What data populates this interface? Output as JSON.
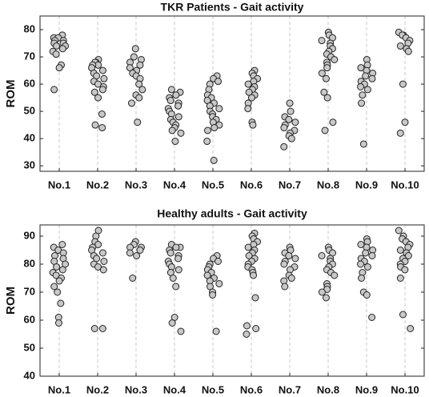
{
  "chart_data": [
    {
      "type": "strip",
      "title": "TKR Patients - Gait activity",
      "y_label": "ROM",
      "categories": [
        "No.1",
        "No.2",
        "No.3",
        "No.4",
        "No.5",
        "No.6",
        "No.7",
        "No.8",
        "No.9",
        "No.10"
      ],
      "values": [
        [
          78,
          77,
          77,
          76,
          76,
          75,
          75,
          74,
          74,
          73,
          72,
          71,
          67,
          66,
          58
        ],
        [
          69,
          68,
          68,
          67,
          67,
          66,
          65,
          64,
          63,
          62,
          61,
          60,
          59,
          58,
          57,
          55,
          49,
          45,
          44
        ],
        [
          73,
          70,
          69,
          68,
          67,
          66,
          65,
          64,
          63,
          62,
          60,
          58,
          56,
          55,
          53,
          46
        ],
        [
          58,
          57,
          56,
          55,
          54,
          53,
          52,
          51,
          50,
          49,
          48,
          47,
          46,
          45,
          44,
          43,
          42,
          39
        ],
        [
          63,
          62,
          61,
          60,
          58,
          56,
          55,
          54,
          53,
          52,
          51,
          50,
          49,
          48,
          47,
          46,
          45,
          44,
          43,
          39,
          32
        ],
        [
          65,
          64,
          63,
          62,
          61,
          60,
          59,
          58,
          57,
          56,
          55,
          53,
          51,
          46,
          45
        ],
        [
          53,
          50,
          48,
          47,
          46,
          45,
          44,
          43,
          42,
          41,
          40,
          37
        ],
        [
          79,
          78,
          77,
          76,
          75,
          74,
          73,
          72,
          71,
          70,
          69,
          68,
          67,
          66,
          64,
          62,
          57,
          55,
          46,
          43
        ],
        [
          69,
          67,
          66,
          65,
          64,
          63,
          62,
          61,
          60,
          59,
          58,
          56,
          53,
          38
        ],
        [
          79,
          78,
          78,
          77,
          76,
          75,
          74,
          73,
          72,
          60,
          46,
          42
        ]
      ],
      "color": "#c8c8c8",
      "ylim": [
        28,
        85
      ],
      "yticks": [
        30,
        40,
        50,
        60,
        70,
        80
      ],
      "grid": true
    },
    {
      "type": "strip",
      "title": "Healthy adults - Gait activity",
      "y_label": "ROM",
      "categories": [
        "No.1",
        "No.2",
        "No.3",
        "No.4",
        "No.5",
        "No.6",
        "No.7",
        "No.8",
        "No.9",
        "No.10"
      ],
      "values": [
        [
          87,
          86,
          85,
          84,
          83,
          82,
          81,
          80,
          79,
          78,
          77,
          76,
          75,
          74,
          72,
          70,
          66,
          61,
          59
        ],
        [
          92,
          90,
          88,
          87,
          86,
          85,
          84,
          83,
          82,
          81,
          80,
          79,
          78,
          57,
          57
        ],
        [
          88,
          87,
          86,
          86,
          85,
          84,
          83,
          75
        ],
        [
          87,
          86,
          86,
          85,
          84,
          83,
          82,
          81,
          80,
          79,
          78,
          77,
          75,
          72,
          61,
          59,
          56
        ],
        [
          83,
          82,
          81,
          80,
          79,
          78,
          77,
          76,
          75,
          74,
          73,
          72,
          70,
          69,
          56
        ],
        [
          91,
          90,
          89,
          88,
          87,
          86,
          85,
          84,
          83,
          82,
          81,
          80,
          79,
          78,
          77,
          76,
          68,
          58,
          57,
          55
        ],
        [
          86,
          85,
          84,
          83,
          82,
          81,
          80,
          79,
          78,
          76,
          75,
          74,
          72
        ],
        [
          86,
          85,
          84,
          83,
          82,
          81,
          80,
          79,
          78,
          77,
          76,
          73,
          72,
          71,
          70,
          68
        ],
        [
          89,
          88,
          87,
          86,
          85,
          84,
          83,
          82,
          81,
          80,
          79,
          77,
          75,
          70,
          69,
          61
        ],
        [
          92,
          90,
          89,
          88,
          87,
          86,
          85,
          84,
          83,
          82,
          81,
          80,
          79,
          78,
          75,
          62,
          57
        ]
      ],
      "color": "#c8c8c8",
      "ylim": [
        40,
        94
      ],
      "yticks": [
        40,
        50,
        60,
        70,
        80,
        90
      ],
      "grid": true
    }
  ]
}
